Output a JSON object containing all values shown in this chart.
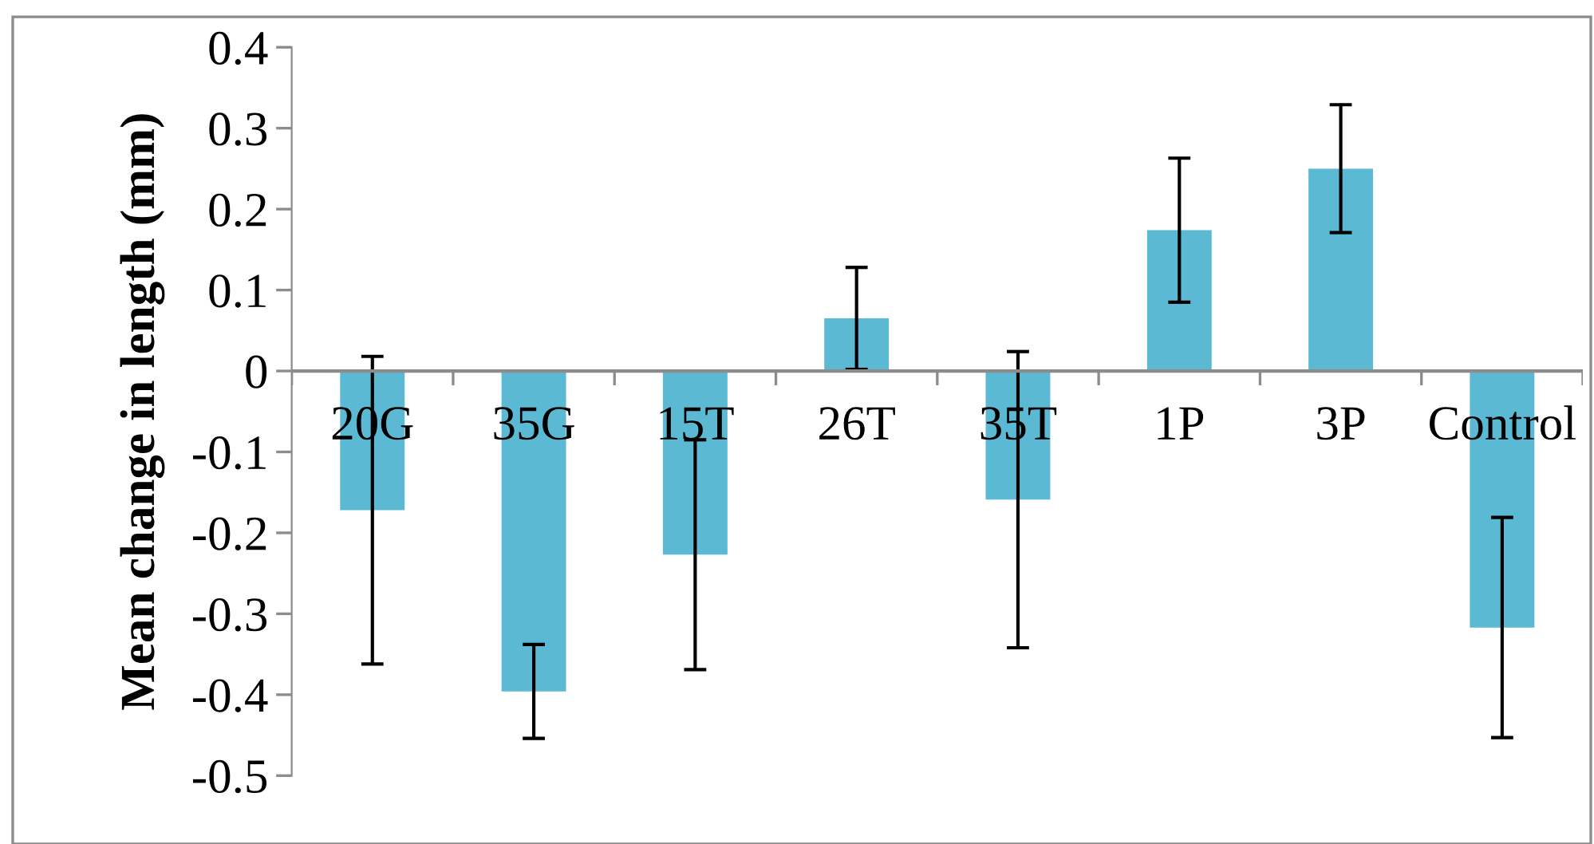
{
  "chart_data": {
    "type": "bar",
    "ylabel": "Mean change in length (mm)",
    "categories": [
      "20G",
      "35G",
      "15T",
      "26T",
      "35T",
      "1P",
      "3P",
      "Control"
    ],
    "values": [
      -0.172,
      -0.396,
      -0.227,
      0.065,
      -0.159,
      0.174,
      0.25,
      -0.317
    ],
    "errors": [
      0.19,
      0.058,
      0.142,
      0.063,
      0.183,
      0.089,
      0.079,
      0.136
    ],
    "color": "#5bb9d3",
    "ylim": [
      -0.5,
      0.4
    ],
    "yticks": [
      -0.5,
      -0.4,
      -0.3,
      -0.2,
      -0.1,
      0,
      0.1,
      0.2,
      0.3,
      0.4
    ],
    "grid": false,
    "legend": false
  }
}
